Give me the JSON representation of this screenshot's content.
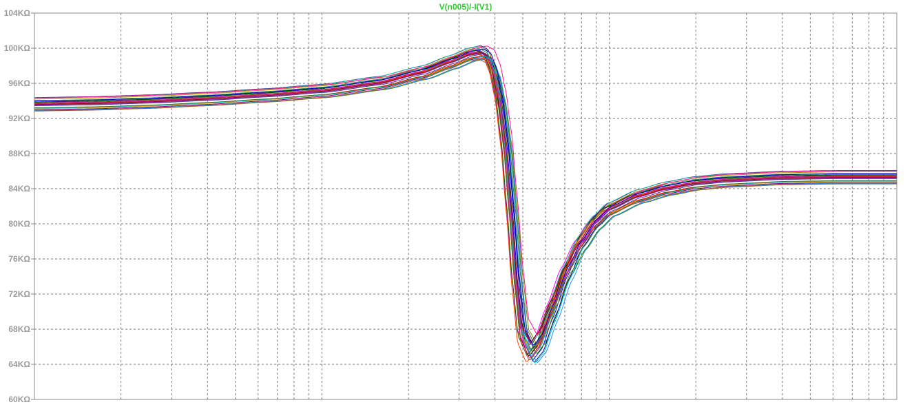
{
  "chart_data": {
    "type": "line",
    "title": "V(n005)/-I(V1)",
    "title_color": "#32cd32",
    "xlabel": "",
    "ylabel": "",
    "x_scale": "log",
    "x_range_decades": [
      0,
      3
    ],
    "ylim": [
      60,
      104
    ],
    "y_unit": "KΩ",
    "y_ticks": [
      "104KΩ",
      "100KΩ",
      "96KΩ",
      "92KΩ",
      "88KΩ",
      "84KΩ",
      "80KΩ",
      "76KΩ",
      "72KΩ",
      "68KΩ",
      "64KΩ",
      "60KΩ"
    ],
    "y_tick_values": [
      104,
      100,
      96,
      92,
      88,
      84,
      80,
      76,
      72,
      68,
      64,
      60
    ],
    "grid": true,
    "grid_style": "dashed",
    "legend": "none",
    "nominal_curve": {
      "x_decades": [
        0.0,
        0.2,
        0.4,
        0.6,
        0.8,
        1.0,
        1.2,
        1.35,
        1.45,
        1.52,
        1.555,
        1.58,
        1.6,
        1.62,
        1.64,
        1.66,
        1.68,
        1.7,
        1.73,
        1.76,
        1.8,
        1.85,
        1.9,
        1.95,
        2.0,
        2.1,
        2.2,
        2.3,
        2.4,
        2.6,
        2.8,
        3.0
      ],
      "y": [
        93.6,
        93.7,
        93.9,
        94.2,
        94.6,
        95.1,
        96.0,
        97.2,
        98.4,
        99.3,
        99.5,
        99.1,
        97.5,
        94.5,
        89.5,
        82.0,
        73.5,
        67.5,
        65.6,
        66.8,
        70.3,
        74.6,
        77.8,
        80.1,
        81.6,
        83.1,
        84.0,
        84.6,
        84.9,
        85.2,
        85.3,
        85.3
      ]
    },
    "series_colors": [
      "#0000ff",
      "#ff0000",
      "#008000",
      "#8b4513",
      "#ff00ff",
      "#000080",
      "#00a0a0",
      "#808000",
      "#800080",
      "#ffa500",
      "#000000",
      "#4b0082",
      "#dc143c",
      "#2e8b57",
      "#1e90ff",
      "#b8860b",
      "#c71585",
      "#006400",
      "#ff4500",
      "#483d8b",
      "#20b2aa",
      "#8b0000",
      "#9932cc",
      "#00ced1",
      "#556b2f",
      "#ff1493",
      "#0000cd",
      "#a0522d"
    ]
  }
}
